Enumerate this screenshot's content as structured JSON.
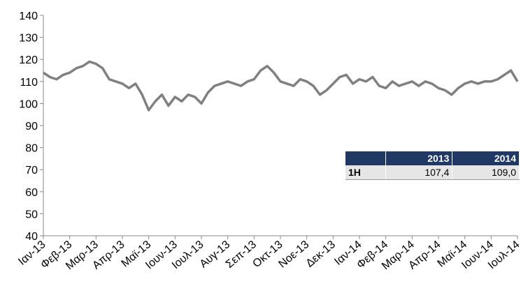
{
  "chart_data": {
    "type": "line",
    "categories": [
      "Ιαν-13",
      null,
      null,
      null,
      "Φεβ-13",
      null,
      null,
      null,
      "Μαρ-13",
      null,
      null,
      null,
      "Απρ-13",
      null,
      null,
      null,
      "Μαϊ-13",
      null,
      null,
      null,
      "Ιουν-13",
      null,
      null,
      null,
      "Ιουλ-13",
      null,
      null,
      null,
      "Αυγ-13",
      null,
      null,
      null,
      "Σεπ-13",
      null,
      null,
      null,
      "Οκτ-13",
      null,
      null,
      null,
      "Νοε-13",
      null,
      null,
      null,
      "Δεκ-13",
      null,
      null,
      null,
      "Ιαν-14",
      null,
      null,
      null,
      "Φεβ-14",
      null,
      null,
      null,
      "Μαρ-14",
      null,
      null,
      null,
      "Απρ-14",
      null,
      null,
      null,
      "Μαϊ-14",
      null,
      null,
      null,
      "Ιουν-14",
      null,
      null,
      null,
      "Ιουλ-14"
    ],
    "series": [
      {
        "color": "#808080",
        "values": [
          114,
          112,
          111,
          113,
          114,
          116,
          117,
          119,
          118,
          116,
          111,
          110,
          109,
          107,
          109,
          104,
          97,
          101,
          104,
          99,
          103,
          101,
          104,
          103,
          100,
          105,
          108,
          109,
          110,
          109,
          108,
          110,
          111,
          115,
          117,
          114,
          110,
          109,
          108,
          111,
          110,
          108,
          104,
          106,
          109,
          112,
          113,
          109,
          111,
          110,
          112,
          108,
          107,
          110,
          108,
          109,
          110,
          108,
          110,
          109,
          107,
          106,
          104,
          107,
          109,
          110,
          109,
          110,
          110,
          111,
          113,
          115,
          110
        ]
      }
    ],
    "ylim": [
      40,
      140
    ],
    "yticks": [
      40,
      50,
      60,
      70,
      80,
      90,
      100,
      110,
      120,
      130,
      140
    ]
  },
  "table": {
    "columns": [
      "2013",
      "2014"
    ],
    "rows": [
      {
        "label": "1H",
        "cells": [
          "107,4",
          "109,0"
        ]
      }
    ]
  }
}
